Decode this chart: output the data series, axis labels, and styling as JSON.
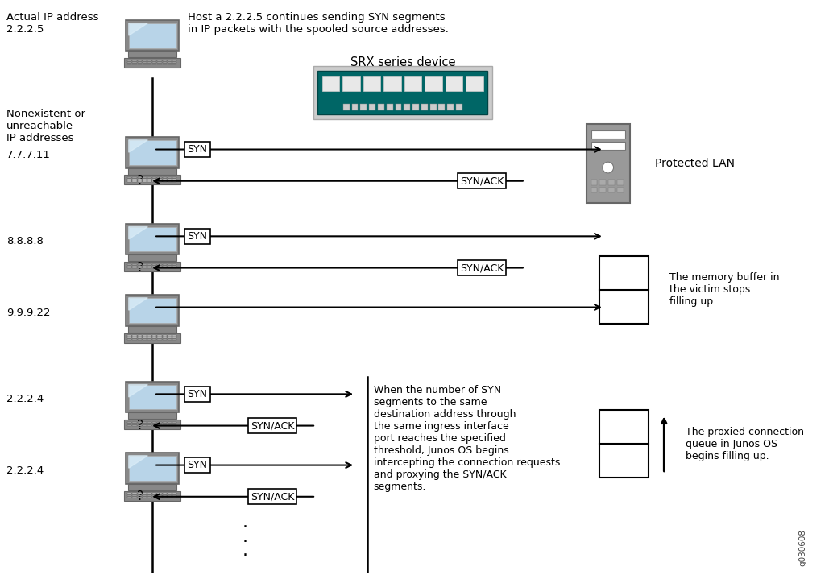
{
  "bg_color": "#ffffff",
  "figsize": [
    10.29,
    7.19
  ],
  "dpi": 100,
  "top_text": "Host a 2.2.2.5 continues sending SYN segments\nin IP packets with the spooled source addresses.",
  "actual_ip_label": "Actual IP address\n2.2.2.5",
  "nonexistent_label": "Nonexistent or\nunreachable\nIP addresses",
  "srx_label": "SRX series device",
  "protected_lan_label": "Protected LAN",
  "memory_buffer_text": "The memory buffer in\nthe victim stops\nfilling up.",
  "proxy_queue_text": "The proxied connection\nqueue in Junos OS\nbegins filling up.",
  "threshold_text": "When the number of SYN\nsegments to the same\ndestination address through\nthe same ingress interface\nport reaches the specified\nthreshold, Junos OS begins\nintercepting the connection requests\nand proxying the SYN/ACK\nsegments.",
  "footnote": "g030608",
  "srx_color": "#006666",
  "screen_color": "#b8d4e8",
  "screen_highlight": "#d0e4f0",
  "computer_gray": "#888888",
  "computer_dark": "#666666",
  "server_gray": "#999999",
  "server_light": "#bbbbbb"
}
